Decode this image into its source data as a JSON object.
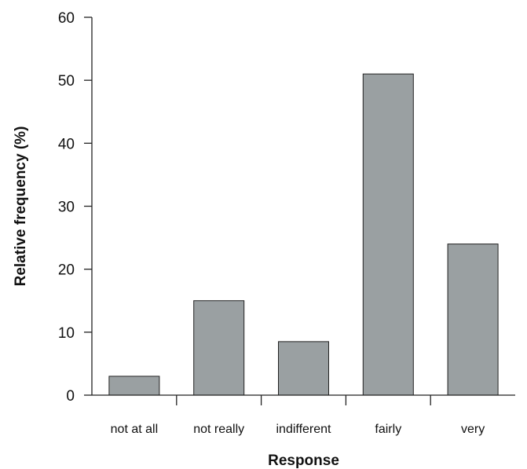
{
  "chart_data": {
    "type": "bar",
    "categories": [
      "not at all",
      "not really",
      "indifferent",
      "fairly",
      "very"
    ],
    "values": [
      3,
      15,
      8.5,
      51,
      24
    ],
    "xlabel": "Response",
    "ylabel": "Relative frequency (%)",
    "ylim": [
      0,
      60
    ],
    "yticks": [
      0,
      10,
      20,
      30,
      40,
      50,
      60
    ],
    "grid": false,
    "legend": "none",
    "bar_color": "#9aa0a2"
  }
}
